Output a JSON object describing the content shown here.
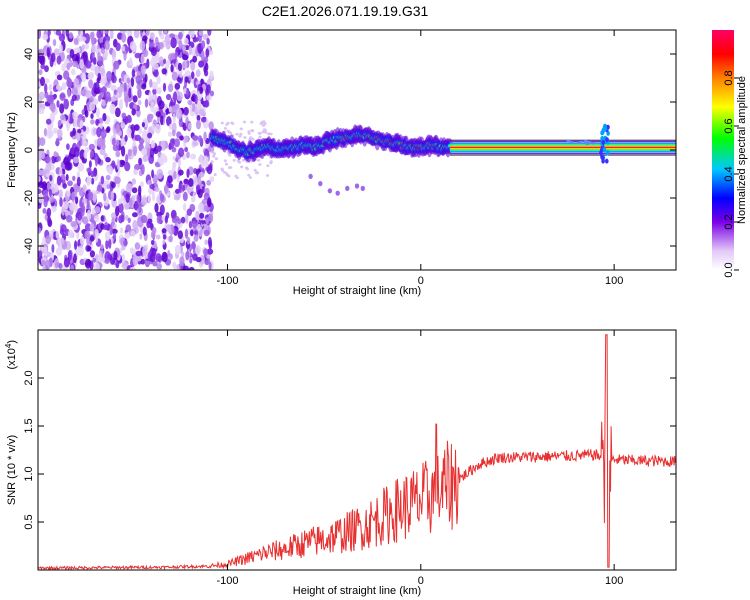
{
  "title": "C2E1.2026.071.19.19.G31",
  "chart_data": [
    {
      "type": "heatmap",
      "panel": "spectrogram",
      "xlabel": "Height of straight line (km)",
      "ylabel": "Frequency (Hz)",
      "xlim": [
        -198,
        132
      ],
      "ylim": [
        -50,
        50
      ],
      "xticks": [
        -100,
        0,
        100
      ],
      "yticks": [
        -40,
        -20,
        0,
        20,
        40
      ],
      "noise_region_x": [
        -198,
        -108
      ],
      "signal_track": {
        "x": [
          -108,
          -100,
          -95,
          -90,
          -85,
          -80,
          -75,
          -70,
          -65,
          -60,
          -55,
          -50,
          -45,
          -40,
          -35,
          -30,
          -25,
          -20,
          -15,
          -10,
          -5,
          0,
          5,
          10,
          15,
          20,
          40,
          60,
          80,
          92,
          96,
          100,
          120,
          132
        ],
        "freq": [
          5,
          3,
          1,
          -1,
          0,
          2,
          0,
          1,
          1,
          2,
          1,
          3,
          4,
          5,
          6,
          6,
          5,
          4,
          3,
          2,
          1,
          1,
          2,
          1,
          1,
          1,
          1,
          1,
          1,
          1,
          1,
          1,
          1,
          1
        ]
      },
      "weak_trace": {
        "x": [
          -57,
          -52,
          -47,
          -43,
          -38,
          -33,
          -30
        ],
        "freq": [
          -11,
          -14,
          -17,
          -18,
          -16,
          -15,
          -16
        ]
      },
      "colorbar": {
        "label": "Normalized spectral amplitude",
        "ticks": [
          "0.0",
          "0.2",
          "0.4",
          "0.6",
          "0.8"
        ],
        "range": [
          0,
          1
        ],
        "colors": [
          "#ffffff",
          "#7a00e6",
          "#0000ff",
          "#00c8ff",
          "#00ff00",
          "#ffff00",
          "#ff8000",
          "#ff0000",
          "#ff0066"
        ]
      }
    },
    {
      "type": "line",
      "panel": "snr",
      "xlabel": "Height of straight line (km)",
      "ylabel": "SNR (10 * v/v)",
      "scale_label": "(x10",
      "scale_exp": "4",
      "xlim": [
        -198,
        132
      ],
      "ylim": [
        0,
        2.5
      ],
      "xticks": [
        -100,
        0,
        100
      ],
      "yticks": [
        "0.5",
        "1.0",
        "1.5",
        "2.0"
      ],
      "series_color": "#e83030",
      "envelope": {
        "x": [
          -198,
          -130,
          -110,
          -100,
          -90,
          -80,
          -70,
          -60,
          -50,
          -40,
          -30,
          -20,
          -10,
          0,
          10,
          20,
          30,
          40,
          60,
          80,
          90,
          94,
          97,
          100,
          110,
          132
        ],
        "y": [
          0.02,
          0.03,
          0.04,
          0.06,
          0.12,
          0.18,
          0.22,
          0.28,
          0.32,
          0.38,
          0.45,
          0.55,
          0.65,
          0.72,
          0.82,
          0.95,
          1.1,
          1.17,
          1.18,
          1.19,
          1.2,
          1.18,
          1.15,
          1.15,
          1.14,
          1.13
        ]
      },
      "spikes": [
        {
          "x": 8,
          "y": 1.52
        },
        {
          "x": 96,
          "y": 2.45
        },
        {
          "x": 97,
          "y": 0.03
        }
      ]
    }
  ]
}
